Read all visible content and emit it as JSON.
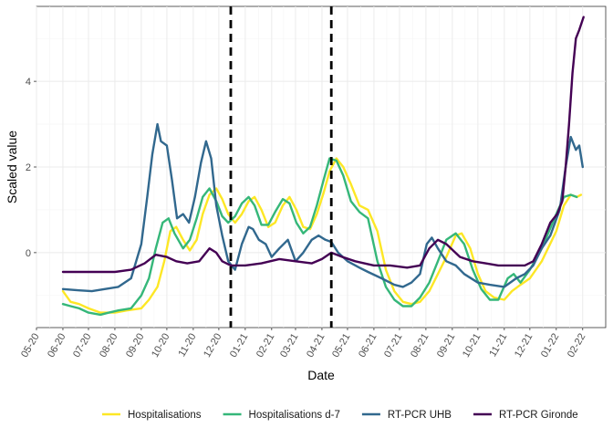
{
  "chart_data": {
    "type": "line",
    "xlabel": "Date",
    "ylabel": "Scaled value",
    "x_range": [
      "2020-05-01",
      "2022-02-28"
    ],
    "ylim": [
      -1.75,
      5.75
    ],
    "grid": true,
    "legend_position": "bottom",
    "x_ticks": [
      "05-20",
      "06-20",
      "07-20",
      "08-20",
      "09-20",
      "10-20",
      "11-20",
      "12-20",
      "01-21",
      "02-21",
      "03-21",
      "04-21",
      "05-21",
      "06-21",
      "07-21",
      "08-21",
      "09-21",
      "10-21",
      "11-21",
      "12-21",
      "01-22",
      "02-22"
    ],
    "y_ticks": [
      0,
      2,
      4
    ],
    "vlines": [
      "2020-12-15",
      "2021-04-12"
    ],
    "colors": {
      "hospitalisations": "#FDE725",
      "hospitalisations_d7": "#35B779",
      "rtpcr_uhb": "#31688E",
      "rtpcr_gironde": "#440154"
    },
    "series": [
      {
        "name": "Hospitalisations",
        "color": "#FDE725",
        "points": [
          [
            "2020-06-01",
            -0.9
          ],
          [
            "2020-06-10",
            -1.15
          ],
          [
            "2020-06-20",
            -1.2
          ],
          [
            "2020-07-01",
            -1.3
          ],
          [
            "2020-07-15",
            -1.4
          ],
          [
            "2020-08-01",
            -1.4
          ],
          [
            "2020-08-15",
            -1.35
          ],
          [
            "2020-09-01",
            -1.3
          ],
          [
            "2020-09-10",
            -1.1
          ],
          [
            "2020-09-20",
            -0.8
          ],
          [
            "2020-09-28",
            -0.2
          ],
          [
            "2020-10-05",
            0.5
          ],
          [
            "2020-10-12",
            0.6
          ],
          [
            "2020-10-20",
            0.3
          ],
          [
            "2020-10-28",
            0.05
          ],
          [
            "2020-11-05",
            0.3
          ],
          [
            "2020-11-12",
            0.9
          ],
          [
            "2020-11-20",
            1.35
          ],
          [
            "2020-11-28",
            1.5
          ],
          [
            "2020-12-05",
            1.25
          ],
          [
            "2020-12-12",
            0.9
          ],
          [
            "2020-12-20",
            0.7
          ],
          [
            "2020-12-28",
            0.9
          ],
          [
            "2021-01-05",
            1.2
          ],
          [
            "2021-01-12",
            1.3
          ],
          [
            "2021-01-20",
            1.0
          ],
          [
            "2021-01-28",
            0.6
          ],
          [
            "2021-02-05",
            0.7
          ],
          [
            "2021-02-14",
            1.1
          ],
          [
            "2021-02-22",
            1.3
          ],
          [
            "2021-03-02",
            1.0
          ],
          [
            "2021-03-10",
            0.6
          ],
          [
            "2021-03-18",
            0.55
          ],
          [
            "2021-03-26",
            0.9
          ],
          [
            "2021-04-03",
            1.4
          ],
          [
            "2021-04-10",
            1.9
          ],
          [
            "2021-04-18",
            2.2
          ],
          [
            "2021-04-26",
            2.0
          ],
          [
            "2021-05-05",
            1.6
          ],
          [
            "2021-05-15",
            1.1
          ],
          [
            "2021-05-25",
            1.0
          ],
          [
            "2021-06-05",
            0.5
          ],
          [
            "2021-06-15",
            -0.4
          ],
          [
            "2021-06-25",
            -0.9
          ],
          [
            "2021-07-05",
            -1.15
          ],
          [
            "2021-07-15",
            -1.2
          ],
          [
            "2021-07-25",
            -1.15
          ],
          [
            "2021-08-05",
            -0.9
          ],
          [
            "2021-08-15",
            -0.5
          ],
          [
            "2021-08-25",
            -0.1
          ],
          [
            "2021-09-05",
            0.4
          ],
          [
            "2021-09-12",
            0.45
          ],
          [
            "2021-09-22",
            0.1
          ],
          [
            "2021-10-01",
            -0.5
          ],
          [
            "2021-10-10",
            -0.9
          ],
          [
            "2021-10-20",
            -1.05
          ],
          [
            "2021-11-01",
            -1.1
          ],
          [
            "2021-11-10",
            -0.9
          ],
          [
            "2021-11-20",
            -0.75
          ],
          [
            "2021-12-01",
            -0.6
          ],
          [
            "2021-12-15",
            -0.2
          ],
          [
            "2022-01-01",
            0.5
          ],
          [
            "2022-01-10",
            1.1
          ],
          [
            "2022-01-18",
            1.35
          ],
          [
            "2022-01-25",
            1.3
          ],
          [
            "2022-01-30",
            1.35
          ]
        ]
      },
      {
        "name": "Hospitalisations d-7",
        "color": "#35B779",
        "points": [
          [
            "2020-06-01",
            -1.2
          ],
          [
            "2020-06-10",
            -1.25
          ],
          [
            "2020-06-20",
            -1.3
          ],
          [
            "2020-07-01",
            -1.4
          ],
          [
            "2020-07-15",
            -1.45
          ],
          [
            "2020-07-25",
            -1.4
          ],
          [
            "2020-08-05",
            -1.35
          ],
          [
            "2020-08-20",
            -1.3
          ],
          [
            "2020-09-01",
            -1.0
          ],
          [
            "2020-09-10",
            -0.6
          ],
          [
            "2020-09-18",
            0.1
          ],
          [
            "2020-09-26",
            0.7
          ],
          [
            "2020-10-03",
            0.8
          ],
          [
            "2020-10-10",
            0.45
          ],
          [
            "2020-10-20",
            0.1
          ],
          [
            "2020-10-28",
            0.3
          ],
          [
            "2020-11-05",
            0.8
          ],
          [
            "2020-11-12",
            1.3
          ],
          [
            "2020-11-20",
            1.5
          ],
          [
            "2020-11-28",
            1.2
          ],
          [
            "2020-12-05",
            0.85
          ],
          [
            "2020-12-12",
            0.7
          ],
          [
            "2020-12-20",
            0.85
          ],
          [
            "2020-12-28",
            1.15
          ],
          [
            "2021-01-05",
            1.3
          ],
          [
            "2021-01-12",
            1.1
          ],
          [
            "2021-01-20",
            0.65
          ],
          [
            "2021-01-28",
            0.65
          ],
          [
            "2021-02-05",
            0.95
          ],
          [
            "2021-02-14",
            1.25
          ],
          [
            "2021-02-22",
            1.15
          ],
          [
            "2021-03-02",
            0.7
          ],
          [
            "2021-03-10",
            0.45
          ],
          [
            "2021-03-18",
            0.6
          ],
          [
            "2021-03-26",
            1.1
          ],
          [
            "2021-04-03",
            1.7
          ],
          [
            "2021-04-10",
            2.2
          ],
          [
            "2021-04-18",
            2.15
          ],
          [
            "2021-04-26",
            1.8
          ],
          [
            "2021-05-05",
            1.2
          ],
          [
            "2021-05-15",
            0.95
          ],
          [
            "2021-05-25",
            0.8
          ],
          [
            "2021-06-05",
            -0.2
          ],
          [
            "2021-06-15",
            -0.8
          ],
          [
            "2021-06-25",
            -1.1
          ],
          [
            "2021-07-05",
            -1.25
          ],
          [
            "2021-07-15",
            -1.25
          ],
          [
            "2021-07-25",
            -1.05
          ],
          [
            "2021-08-05",
            -0.7
          ],
          [
            "2021-08-15",
            -0.2
          ],
          [
            "2021-08-25",
            0.3
          ],
          [
            "2021-09-05",
            0.45
          ],
          [
            "2021-09-15",
            0.2
          ],
          [
            "2021-09-25",
            -0.4
          ],
          [
            "2021-10-05",
            -0.85
          ],
          [
            "2021-10-15",
            -1.1
          ],
          [
            "2021-10-25",
            -1.1
          ],
          [
            "2021-11-05",
            -0.6
          ],
          [
            "2021-11-12",
            -0.5
          ],
          [
            "2021-11-20",
            -0.7
          ],
          [
            "2021-12-01",
            -0.4
          ],
          [
            "2021-12-15",
            0.1
          ],
          [
            "2022-01-01",
            0.9
          ],
          [
            "2022-01-10",
            1.3
          ],
          [
            "2022-01-18",
            1.35
          ],
          [
            "2022-01-25",
            1.3
          ]
        ]
      },
      {
        "name": "RT-PCR UHB",
        "color": "#31688E",
        "points": [
          [
            "2020-06-01",
            -0.85
          ],
          [
            "2020-06-20",
            -0.88
          ],
          [
            "2020-07-05",
            -0.9
          ],
          [
            "2020-07-20",
            -0.85
          ],
          [
            "2020-08-05",
            -0.8
          ],
          [
            "2020-08-20",
            -0.6
          ],
          [
            "2020-09-01",
            0.2
          ],
          [
            "2020-09-08",
            1.3
          ],
          [
            "2020-09-14",
            2.3
          ],
          [
            "2020-09-20",
            3.0
          ],
          [
            "2020-09-24",
            2.6
          ],
          [
            "2020-10-01",
            2.5
          ],
          [
            "2020-10-07",
            1.7
          ],
          [
            "2020-10-13",
            0.8
          ],
          [
            "2020-10-20",
            0.9
          ],
          [
            "2020-10-27",
            0.7
          ],
          [
            "2020-11-03",
            1.3
          ],
          [
            "2020-11-10",
            2.1
          ],
          [
            "2020-11-16",
            2.6
          ],
          [
            "2020-11-22",
            2.2
          ],
          [
            "2020-11-28",
            1.1
          ],
          [
            "2020-12-05",
            0.4
          ],
          [
            "2020-12-12",
            -0.2
          ],
          [
            "2020-12-20",
            -0.4
          ],
          [
            "2020-12-28",
            0.2
          ],
          [
            "2021-01-05",
            0.6
          ],
          [
            "2021-01-10",
            0.55
          ],
          [
            "2021-01-17",
            0.3
          ],
          [
            "2021-01-25",
            0.2
          ],
          [
            "2021-02-01",
            -0.1
          ],
          [
            "2021-02-10",
            0.1
          ],
          [
            "2021-02-20",
            0.3
          ],
          [
            "2021-03-01",
            -0.2
          ],
          [
            "2021-03-10",
            0.0
          ],
          [
            "2021-03-20",
            0.3
          ],
          [
            "2021-03-28",
            0.4
          ],
          [
            "2021-04-05",
            0.3
          ],
          [
            "2021-04-12",
            0.25
          ],
          [
            "2021-04-20",
            0.0
          ],
          [
            "2021-05-01",
            -0.2
          ],
          [
            "2021-05-15",
            -0.35
          ],
          [
            "2021-05-25",
            -0.45
          ],
          [
            "2021-06-10",
            -0.6
          ],
          [
            "2021-06-25",
            -0.75
          ],
          [
            "2021-07-05",
            -0.8
          ],
          [
            "2021-07-15",
            -0.7
          ],
          [
            "2021-07-25",
            -0.5
          ],
          [
            "2021-08-02",
            0.2
          ],
          [
            "2021-08-08",
            0.35
          ],
          [
            "2021-08-15",
            0.1
          ],
          [
            "2021-08-25",
            -0.2
          ],
          [
            "2021-09-05",
            -0.3
          ],
          [
            "2021-09-15",
            -0.5
          ],
          [
            "2021-10-01",
            -0.7
          ],
          [
            "2021-10-15",
            -0.75
          ],
          [
            "2021-11-01",
            -0.8
          ],
          [
            "2021-11-15",
            -0.6
          ],
          [
            "2021-11-25",
            -0.5
          ],
          [
            "2021-12-05",
            -0.3
          ],
          [
            "2021-12-15",
            0.1
          ],
          [
            "2021-12-25",
            0.4
          ],
          [
            "2022-01-05",
            1.0
          ],
          [
            "2022-01-12",
            2.0
          ],
          [
            "2022-01-18",
            2.7
          ],
          [
            "2022-01-24",
            2.4
          ],
          [
            "2022-01-28",
            2.5
          ],
          [
            "2022-02-01",
            2.0
          ]
        ]
      },
      {
        "name": "RT-PCR Gironde",
        "color": "#440154",
        "points": [
          [
            "2020-06-01",
            -0.45
          ],
          [
            "2020-07-01",
            -0.45
          ],
          [
            "2020-08-01",
            -0.45
          ],
          [
            "2020-08-20",
            -0.4
          ],
          [
            "2020-09-05",
            -0.25
          ],
          [
            "2020-09-18",
            -0.05
          ],
          [
            "2020-10-01",
            -0.1
          ],
          [
            "2020-10-12",
            -0.2
          ],
          [
            "2020-10-25",
            -0.25
          ],
          [
            "2020-11-08",
            -0.2
          ],
          [
            "2020-11-20",
            0.1
          ],
          [
            "2020-11-28",
            0.0
          ],
          [
            "2020-12-05",
            -0.2
          ],
          [
            "2020-12-15",
            -0.3
          ],
          [
            "2021-01-01",
            -0.3
          ],
          [
            "2021-01-20",
            -0.25
          ],
          [
            "2021-02-10",
            -0.15
          ],
          [
            "2021-03-01",
            -0.2
          ],
          [
            "2021-03-20",
            -0.25
          ],
          [
            "2021-04-01",
            -0.15
          ],
          [
            "2021-04-12",
            0.0
          ],
          [
            "2021-04-25",
            -0.1
          ],
          [
            "2021-05-10",
            -0.2
          ],
          [
            "2021-06-01",
            -0.3
          ],
          [
            "2021-06-20",
            -0.3
          ],
          [
            "2021-07-10",
            -0.35
          ],
          [
            "2021-07-25",
            -0.3
          ],
          [
            "2021-08-05",
            0.1
          ],
          [
            "2021-08-15",
            0.3
          ],
          [
            "2021-08-25",
            0.2
          ],
          [
            "2021-09-10",
            -0.1
          ],
          [
            "2021-09-25",
            -0.2
          ],
          [
            "2021-10-10",
            -0.25
          ],
          [
            "2021-10-25",
            -0.3
          ],
          [
            "2021-11-10",
            -0.3
          ],
          [
            "2021-11-25",
            -0.3
          ],
          [
            "2021-12-05",
            -0.2
          ],
          [
            "2021-12-15",
            0.2
          ],
          [
            "2021-12-25",
            0.7
          ],
          [
            "2022-01-02",
            0.9
          ],
          [
            "2022-01-08",
            1.2
          ],
          [
            "2022-01-12",
            2.0
          ],
          [
            "2022-01-16",
            3.0
          ],
          [
            "2022-01-20",
            4.2
          ],
          [
            "2022-01-24",
            5.0
          ],
          [
            "2022-01-28",
            5.2
          ],
          [
            "2022-02-02",
            5.5
          ]
        ]
      }
    ]
  }
}
